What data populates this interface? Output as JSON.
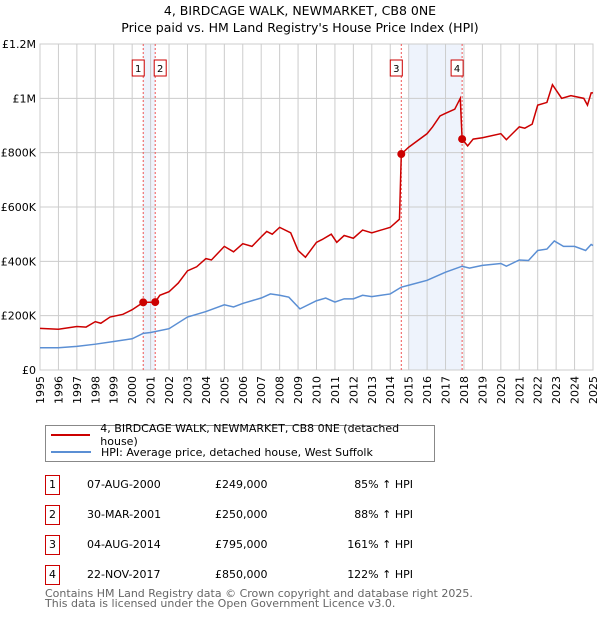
{
  "chart_data": {
    "type": "line",
    "title": "4, BIRDCAGE WALK, NEWMARKET, CB8 0NE",
    "subtitle": "Price paid vs. HM Land Registry's House Price Index (HPI)",
    "xlim": [
      1995,
      2025
    ],
    "ylim": [
      0,
      1200000
    ],
    "y_ticks": [
      {
        "v": 0,
        "l": "£0"
      },
      {
        "v": 200000,
        "l": "£200K"
      },
      {
        "v": 400000,
        "l": "£400K"
      },
      {
        "v": 600000,
        "l": "£600K"
      },
      {
        "v": 800000,
        "l": "£800K"
      },
      {
        "v": 1000000,
        "l": "£1M"
      },
      {
        "v": 1200000,
        "l": "£1.2M"
      }
    ],
    "x_ticks": [
      "1995",
      "1996",
      "1997",
      "1998",
      "1999",
      "2000",
      "2001",
      "2002",
      "2003",
      "2004",
      "2005",
      "2006",
      "2007",
      "2008",
      "2009",
      "2010",
      "2011",
      "2012",
      "2013",
      "2014",
      "2015",
      "2016",
      "2017",
      "2018",
      "2019",
      "2020",
      "2021",
      "2022",
      "2023",
      "2024",
      "2025"
    ],
    "grid": true,
    "series": [
      {
        "name": "4, BIRDCAGE WALK, NEWMARKET, CB8 0NE (detached house)",
        "color": "#cc0000",
        "x": [
          1995,
          1996,
          1997,
          1997.5,
          1998,
          1998.3,
          1998.8,
          1999.5,
          2000,
          2000.6,
          2001.25,
          2001.5,
          2002,
          2002.5,
          2003,
          2003.5,
          2004,
          2004.3,
          2005,
          2005.5,
          2006,
          2006.5,
          2007,
          2007.3,
          2007.6,
          2008,
          2008.6,
          2009,
          2009.4,
          2010,
          2010.3,
          2010.8,
          2011.1,
          2011.5,
          2012,
          2012.5,
          2013,
          2013.5,
          2014,
          2014.5,
          2014.6,
          2015,
          2016,
          2016.3,
          2016.7,
          2017,
          2017.5,
          2017.8,
          2017.9,
          2018.2,
          2018.5,
          2019,
          2020,
          2020.3,
          2021,
          2021.3,
          2021.7,
          2022,
          2022.5,
          2022.8,
          2023.3,
          2023.8,
          2024.5,
          2024.7,
          2024.9,
          2025
        ],
        "values": [
          153000,
          150000,
          160000,
          158000,
          178000,
          172000,
          195000,
          205000,
          222000,
          249000,
          250000,
          275000,
          288000,
          320000,
          365000,
          380000,
          410000,
          405000,
          455000,
          435000,
          465000,
          455000,
          490000,
          510000,
          500000,
          525000,
          505000,
          440000,
          415000,
          470000,
          480000,
          500000,
          470000,
          495000,
          485000,
          515000,
          505000,
          515000,
          525000,
          555000,
          795000,
          820000,
          870000,
          895000,
          935000,
          945000,
          960000,
          1000000,
          850000,
          825000,
          850000,
          855000,
          870000,
          848000,
          895000,
          890000,
          905000,
          975000,
          985000,
          1050000,
          1000000,
          1010000,
          1000000,
          975000,
          1020000,
          1020000
        ]
      },
      {
        "name": "HPI: Average price, detached house, West Suffolk",
        "color": "#5b8fd4",
        "x": [
          1995,
          1996,
          1997,
          1998,
          1999,
          2000,
          2000.6,
          2001,
          2002,
          2003,
          2004,
          2005,
          2005.5,
          2006,
          2007,
          2007.5,
          2008,
          2008.5,
          2009.1,
          2010,
          2010.5,
          2011,
          2011.5,
          2012,
          2012.5,
          2013,
          2014,
          2014.6,
          2015,
          2016,
          2017,
          2017.9,
          2018.3,
          2019,
          2020,
          2020.3,
          2021,
          2021.5,
          2022,
          2022.5,
          2022.9,
          2023.4,
          2024,
          2024.6,
          2024.9,
          2025
        ],
        "values": [
          82000,
          82000,
          87000,
          95000,
          105000,
          115000,
          135000,
          138000,
          152000,
          195000,
          215000,
          240000,
          232000,
          245000,
          265000,
          280000,
          275000,
          268000,
          225000,
          255000,
          265000,
          250000,
          262000,
          262000,
          275000,
          270000,
          280000,
          305000,
          312000,
          330000,
          360000,
          382000,
          375000,
          385000,
          392000,
          382000,
          405000,
          403000,
          440000,
          445000,
          475000,
          455000,
          455000,
          440000,
          462000,
          458000
        ]
      }
    ],
    "sales": [
      {
        "n": "1",
        "x": 2000.6,
        "value": 249000,
        "date": "07-AUG-2000",
        "price": "£249,000",
        "hpi": "85% ↑ HPI"
      },
      {
        "n": "2",
        "x": 2001.25,
        "value": 250000,
        "date": "30-MAR-2001",
        "price": "£250,000",
        "hpi": "88% ↑ HPI"
      },
      {
        "n": "3",
        "x": 2014.6,
        "value": 795000,
        "date": "04-AUG-2014",
        "price": "£795,000",
        "hpi": "161% ↑ HPI"
      },
      {
        "n": "4",
        "x": 2017.9,
        "value": 850000,
        "date": "22-NOV-2017",
        "price": "£850,000",
        "hpi": "122% ↑ HPI"
      }
    ],
    "shaded": [
      [
        2000.6,
        2001.25
      ],
      [
        2015.0,
        2017.9
      ]
    ]
  },
  "footer": {
    "line1": "Contains HM Land Registry data © Crown copyright and database right 2025.",
    "line2": "This data is licensed under the Open Government Licence v3.0."
  }
}
